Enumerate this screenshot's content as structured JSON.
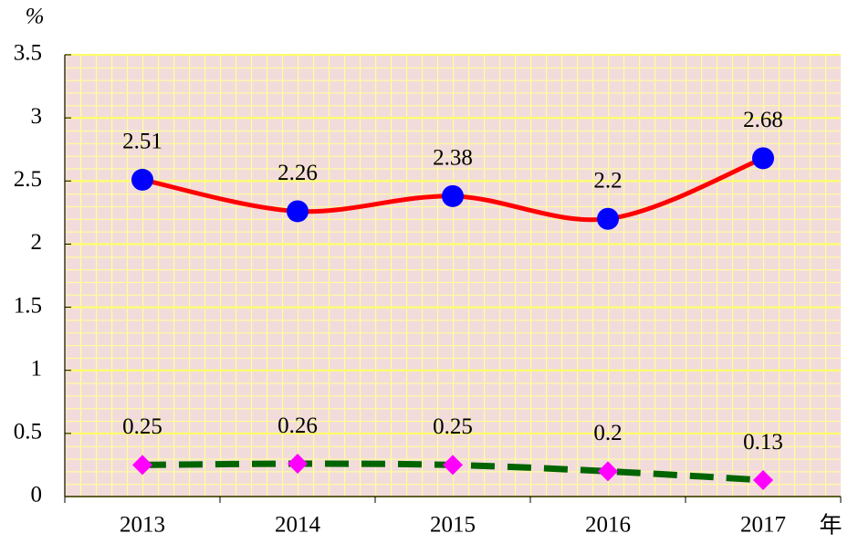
{
  "chart_data": {
    "type": "line",
    "y_label": "%",
    "x_label": "年",
    "categories": [
      "2013",
      "2014",
      "2015",
      "2016",
      "2017"
    ],
    "series": [
      {
        "color": "#ff0000",
        "marker_color": "#0000ff",
        "marker": "circle",
        "line_style": "solid",
        "smooth": true,
        "values": [
          2.51,
          2.26,
          2.38,
          2.2,
          2.68
        ]
      },
      {
        "color": "#006400",
        "marker_color": "#ff00ff",
        "marker": "diamond",
        "line_style": "dashed",
        "smooth": true,
        "values": [
          0.25,
          0.26,
          0.25,
          0.2,
          0.13
        ]
      }
    ],
    "ylim": [
      0,
      3.5
    ],
    "yticks": [
      0,
      0.5,
      1,
      1.5,
      2,
      2.5,
      3,
      3.5
    ],
    "grid": true
  }
}
